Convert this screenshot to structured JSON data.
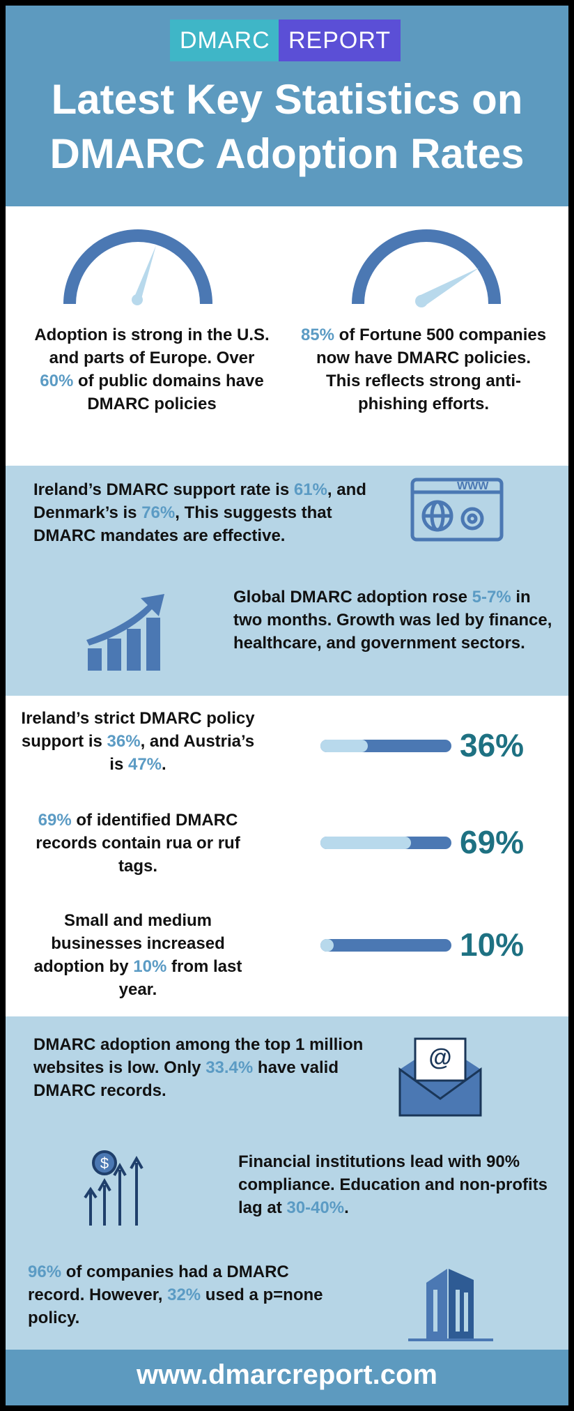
{
  "header": {
    "logo": [
      "DMARC",
      "REPORT"
    ],
    "title": [
      "Latest Key Statistics on",
      "DMARC Adoption Rates"
    ]
  },
  "stats": [
    {
      "parts": [
        "Adoption is strong in the U.S. and parts of Europe. Over ",
        {
          "text": "60%",
          "color": "#5b9bc4"
        },
        " of public domains have DMARC policies"
      ]
    },
    {
      "parts": [
        {
          "text": "85%",
          "color": "#5b9bc4"
        },
        " of Fortune 500 companies now have DMARC policies. This reflects strong anti-phishing efforts."
      ]
    },
    {
      "parts": [
        "Ireland’s DMARC support rate is ",
        {
          "text": "61%",
          "color": "#5b9bc4"
        },
        ", and Denmark’s is ",
        {
          "text": "76%",
          "color": "#5b9bc4"
        },
        ", This suggests that DMARC mandates are effective."
      ]
    },
    {
      "parts": [
        "Global DMARC adoption rose ",
        {
          "text": "5-7%",
          "color": "#5b9bc4"
        },
        " in two months. Growth was led by finance, healthcare, and government sectors."
      ]
    },
    {
      "parts": [
        "DMARC adoption among the top 1 million websites is low. Only ",
        {
          "text": "33.4%",
          "color": "#5b9bc4"
        },
        " have valid DMARC records."
      ]
    },
    {
      "parts": [
        "Financial institutions lead with 90% compliance. Education and non-profits lag at ",
        {
          "text": "30-40%",
          "color": "#5b9bc4"
        },
        "."
      ]
    },
    {
      "parts": [
        {
          "text": "96%",
          "color": "#5b9bc4"
        },
        " of companies had a DMARC record. However, ",
        {
          "text": "32%",
          "color": "#5b9bc4"
        },
        " used a p=none policy."
      ]
    }
  ],
  "bars": [
    {
      "parts": [
        "Ireland’s strict DMARC policy support is ",
        {
          "text": "36%",
          "color": "#5b9bc4"
        },
        ", and Austria’s is ",
        {
          "text": "47%",
          "color": "#5b9bc4"
        },
        "."
      ],
      "value": 36,
      "label": "36%"
    },
    {
      "parts": [
        {
          "text": "69%",
          "color": "#5b9bc4"
        },
        " of identified DMARC records contain rua or ruf tags."
      ],
      "value": 69,
      "label": "69%"
    },
    {
      "parts": [
        "Small and medium businesses increased adoption by ",
        {
          "text": "10%",
          "color": "#5b9bc4"
        },
        " from last year."
      ],
      "value": 10,
      "label": "10%"
    }
  ],
  "footer": {
    "url": "www.dmarcreport.com"
  }
}
